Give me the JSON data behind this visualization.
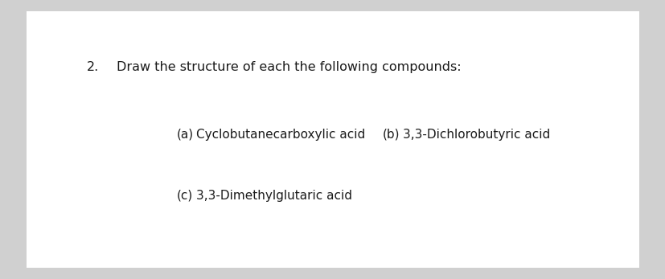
{
  "background_color": "#d0d0d0",
  "content_background": "#ffffff",
  "question_number": "2.",
  "question_text": "Draw the structure of each the following compounds:",
  "line1_a_label": "(a)",
  "line1_a_text": "Cyclobutanecarboxylic acid",
  "line1_b_label": "(b)",
  "line1_b_text": "3,3-Dichlorobutyric acid",
  "line2_c_label": "(c)",
  "line2_c_text": "3,3-Dimethylglutaric acid",
  "font_size_question": 11.5,
  "font_size_items": 11.0,
  "text_color": "#1a1a1a",
  "font_family": "sans-serif"
}
